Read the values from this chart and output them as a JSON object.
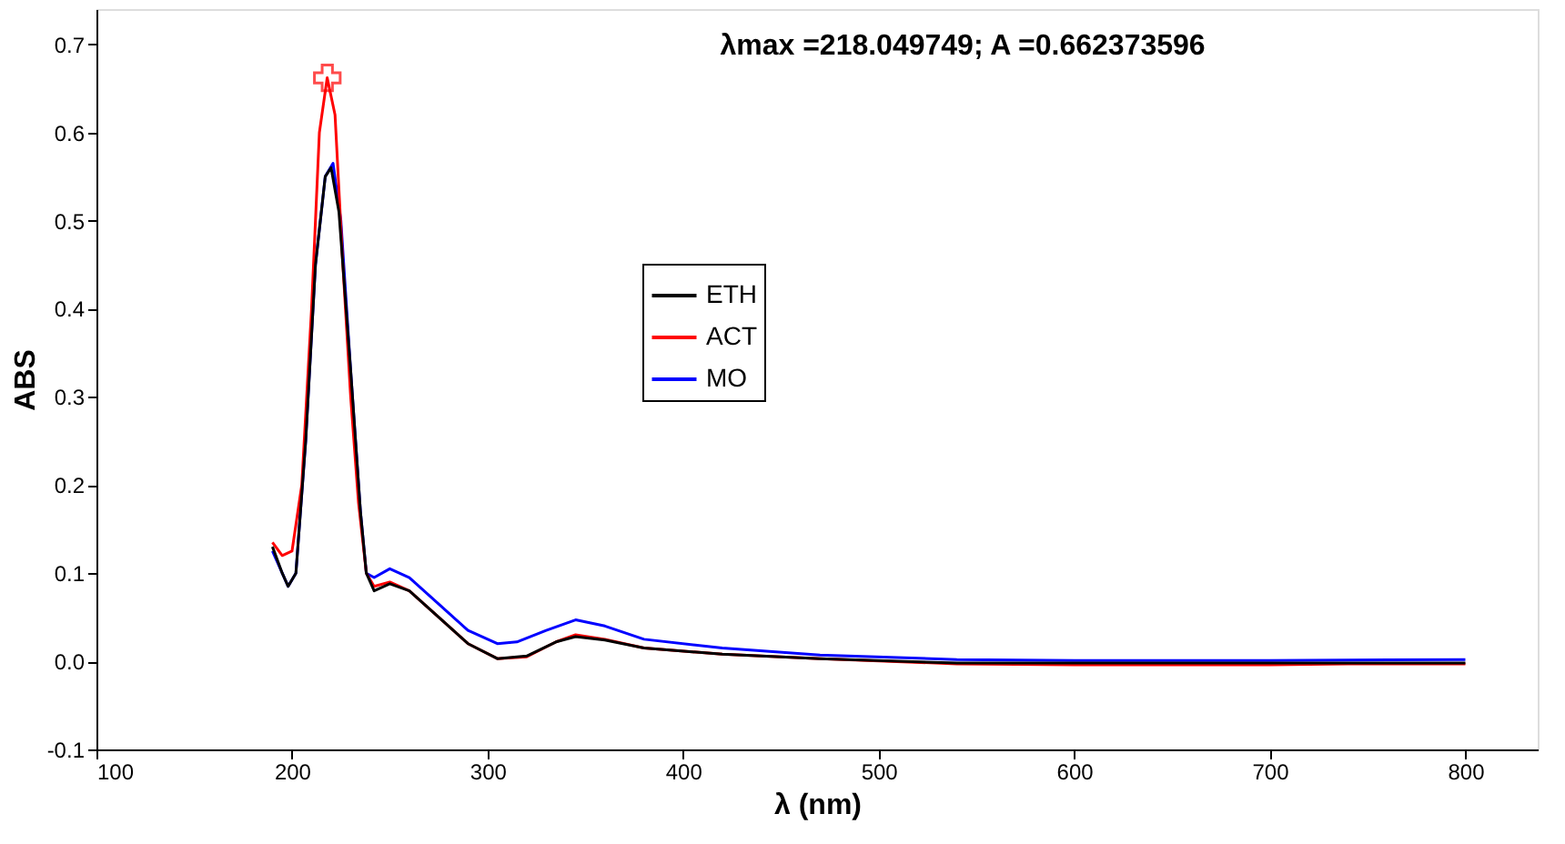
{
  "chart_data": {
    "type": "line",
    "title": "λmax =218.049749; A =0.662373596",
    "xlabel": "λ (nm)",
    "ylabel": "ABS",
    "xlim": [
      100,
      837
    ],
    "xticks": [
      100,
      200,
      300,
      400,
      500,
      600,
      700,
      800
    ],
    "ylim": [
      -0.1,
      0.74
    ],
    "yticks": [
      -0.1,
      {
        "value": 0,
        "label": "0.0"
      },
      0.1,
      0.2,
      0.3,
      0.4,
      0.5,
      0.6,
      0.7
    ],
    "grid": false,
    "legend": "center",
    "marker": "none",
    "line_style": "solid",
    "series": [
      {
        "name": "ETH",
        "color": "#000000",
        "x": [
          190,
          195,
          198,
          202,
          207,
          212,
          217,
          220,
          224,
          230,
          235,
          238,
          242,
          250,
          260,
          275,
          290,
          305,
          320,
          335,
          345,
          360,
          380,
          420,
          470,
          540,
          800
        ],
        "values": [
          0.13,
          0.1,
          0.085,
          0.1,
          0.25,
          0.45,
          0.55,
          0.56,
          0.51,
          0.33,
          0.17,
          0.1,
          0.08,
          0.088,
          0.08,
          0.05,
          0.02,
          0.003,
          0.006,
          0.022,
          0.028,
          0.024,
          0.015,
          0.008,
          0.003,
          -0.002,
          -0.002
        ]
      },
      {
        "name": "ACT",
        "color": "#ff0000",
        "x": [
          190,
          195,
          200,
          205,
          210,
          214,
          218,
          222,
          226,
          230,
          234,
          238,
          242,
          250,
          260,
          275,
          290,
          305,
          320,
          335,
          345,
          360,
          380,
          420,
          470,
          540,
          600,
          700,
          740,
          800
        ],
        "values": [
          0.135,
          0.12,
          0.125,
          0.2,
          0.4,
          0.6,
          0.662,
          0.62,
          0.45,
          0.3,
          0.18,
          0.1,
          0.085,
          0.09,
          0.08,
          0.05,
          0.02,
          0.003,
          0.005,
          0.022,
          0.03,
          0.025,
          0.015,
          0.008,
          0.003,
          -0.003,
          -0.004,
          -0.004,
          -0.003,
          -0.003
        ]
      },
      {
        "name": "MO",
        "color": "#0000ff",
        "x": [
          190,
          195,
          198,
          202,
          207,
          212,
          217,
          221,
          225,
          230,
          235,
          238,
          242,
          250,
          260,
          275,
          290,
          305,
          315,
          330,
          345,
          360,
          380,
          420,
          470,
          540,
          600,
          700,
          800
        ],
        "values": [
          0.125,
          0.1,
          0.085,
          0.1,
          0.25,
          0.45,
          0.55,
          0.565,
          0.5,
          0.33,
          0.17,
          0.1,
          0.095,
          0.105,
          0.095,
          0.065,
          0.035,
          0.02,
          0.022,
          0.035,
          0.047,
          0.04,
          0.025,
          0.015,
          0.007,
          0.002,
          0.001,
          0.001,
          0.002
        ]
      },
      {
        "type": "scatter",
        "marker": "cross",
        "color": "#ff0000",
        "x": [
          218.05
        ],
        "values": [
          0.662
        ]
      }
    ]
  }
}
